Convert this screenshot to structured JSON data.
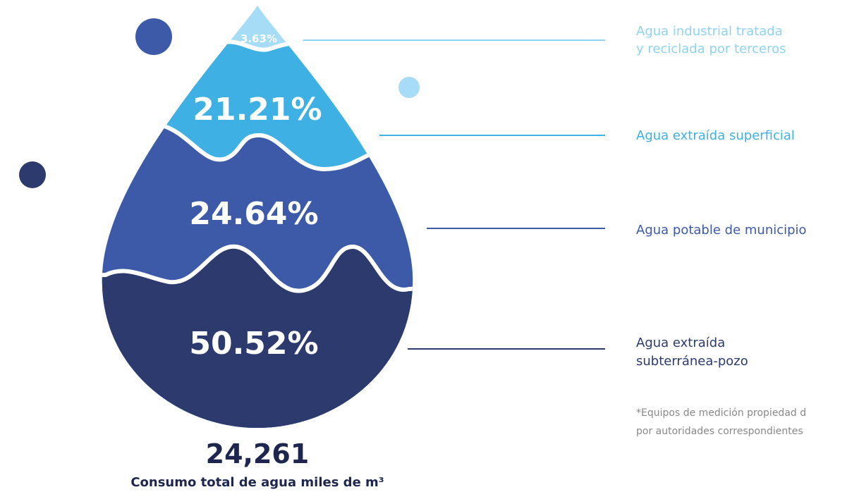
{
  "drop": {
    "segments": [
      {
        "value_label": "3.63%",
        "label": [
          "Agua industrial tratada",
          "y reciclada por terceros"
        ]
      },
      {
        "value_label": "21.21%",
        "label": [
          "Agua extraída superficial"
        ]
      },
      {
        "value_label": "24.64%",
        "label": [
          "Agua potable de municipio"
        ]
      },
      {
        "value_label": "50.52%",
        "label": [
          "Agua extraída",
          "subterránea-pozo"
        ]
      }
    ],
    "total": "24,261",
    "total_caption": "Consumo total de agua miles de m³",
    "footnote": [
      "*Equipos de medición propiedad d",
      "por autoridades correspondientes"
    ]
  }
}
